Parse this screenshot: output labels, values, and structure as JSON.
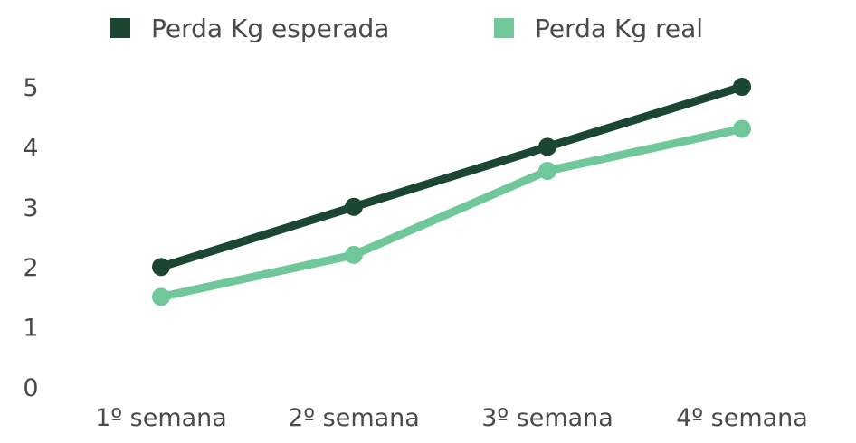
{
  "chart_data": {
    "type": "line",
    "categories": [
      "1º semana",
      "2º semana",
      "3º semana",
      "4º semana"
    ],
    "series": [
      {
        "name": "Perda Kg esperada",
        "color": "#1b4632",
        "values": [
          2,
          3,
          4,
          5
        ]
      },
      {
        "name": "Perda Kg real",
        "color": "#6fc79a",
        "values": [
          1.5,
          2.2,
          3.6,
          4.3
        ]
      }
    ],
    "yticks": [
      0,
      1,
      2,
      3,
      4,
      5
    ],
    "ylim": [
      0,
      5
    ],
    "grid": false,
    "legend_position": "top"
  }
}
